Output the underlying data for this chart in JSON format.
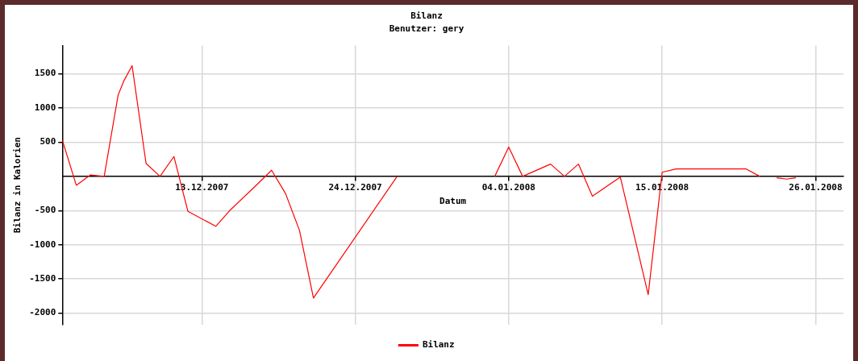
{
  "chart_data": {
    "type": "line",
    "title": "Bilanz",
    "subtitle": "Benutzer: gery",
    "xlabel": "Datum",
    "ylabel": "Bilanz in Kalorien",
    "x": [
      "2007-12-03",
      "2007-12-04",
      "2007-12-05",
      "2007-12-06",
      "2007-12-07",
      "2007-12-07T10:00",
      "2007-12-08",
      "2007-12-09",
      "2007-12-10",
      "2007-12-11",
      "2007-12-12",
      "2007-12-14",
      "2007-12-15",
      "2007-12-17",
      "2007-12-18",
      "2007-12-19",
      "2007-12-20",
      "2007-12-21",
      "2007-12-27",
      "2007-12-28",
      "2008-01-03",
      "2008-01-04",
      "2008-01-05",
      "2008-01-07",
      "2008-01-08",
      "2008-01-09",
      "2008-01-10",
      "2008-01-12",
      "2008-01-14",
      "2008-01-15",
      "2008-01-16",
      "2008-01-21",
      "2008-01-22",
      "2008-01-22T12:00",
      "2008-01-23T05:00",
      "2008-01-23T22:00",
      "2008-01-24T14:00"
    ],
    "series": [
      {
        "name": "Bilanz",
        "color": "#ff0000",
        "values": [
          530,
          -130,
          20,
          0,
          1190,
          1400,
          1620,
          190,
          0,
          290,
          -510,
          -730,
          -500,
          -110,
          90,
          -250,
          -790,
          -1780,
          0,
          null,
          0,
          430,
          0,
          180,
          0,
          180,
          -290,
          -10,
          -1730,
          60,
          110,
          110,
          0,
          null,
          -20,
          -40,
          -20
        ]
      }
    ],
    "xlim": [
      "2007-12-03",
      "2008-01-28"
    ],
    "xticks": [
      {
        "value": "2007-12-13",
        "label": "13.12.2007"
      },
      {
        "value": "2007-12-24",
        "label": "24.12.2007"
      },
      {
        "value": "2008-01-04",
        "label": "04.01.2008"
      },
      {
        "value": "2008-01-15",
        "label": "15.01.2008"
      },
      {
        "value": "2008-01-26",
        "label": "26.01.2008"
      }
    ],
    "ylim": [
      -2170,
      1915
    ],
    "yticks": [
      -2000,
      -1500,
      -1000,
      -500,
      500,
      1000,
      1500
    ],
    "grid": true,
    "legend": "bottom",
    "marker": "none",
    "line_style": "solid"
  }
}
